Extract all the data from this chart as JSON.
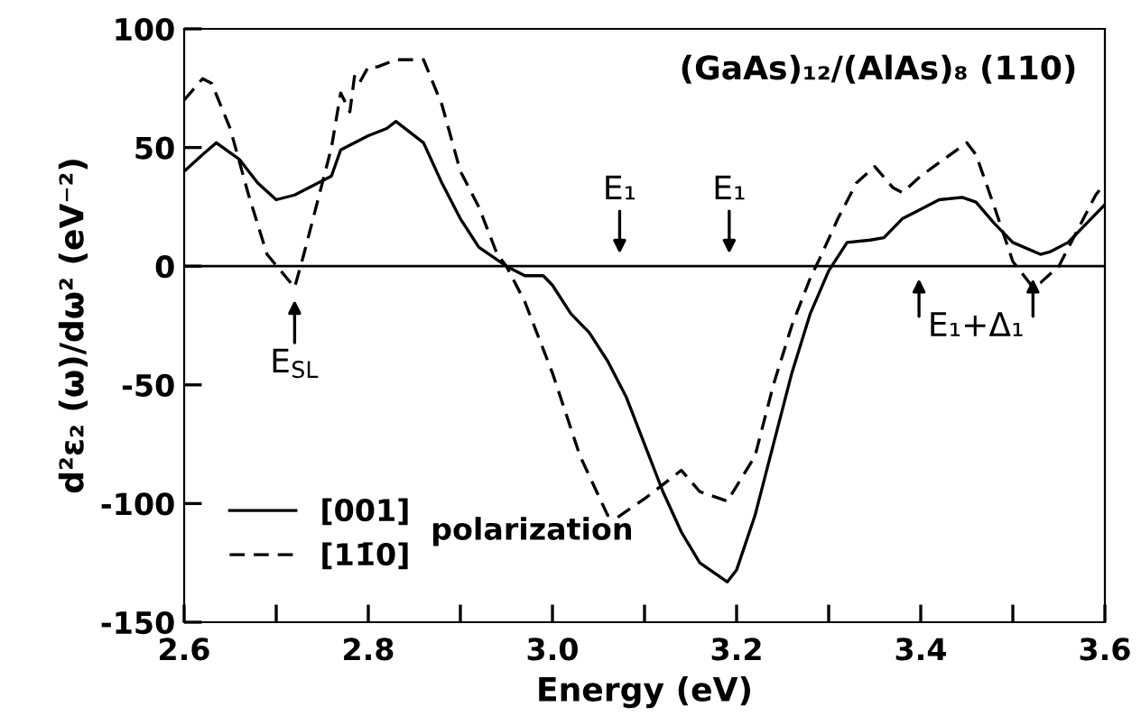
{
  "chart_data": {
    "type": "line",
    "title": "(GaAs)₁₂/(AlAs)₈ (110)",
    "xlabel": "Energy (eV)",
    "ylabel": "d²ε₂ (ω)/dω² (eV⁻²)",
    "legend_title": "polarization",
    "legend": "bottom left",
    "grid": false,
    "xlim": [
      2.6,
      3.6
    ],
    "ylim": [
      -150,
      100
    ],
    "xticks": [
      2.6,
      {
        "value": 2.7,
        "label": null
      },
      2.8,
      {
        "value": 2.9,
        "label": null
      },
      {
        "value": 3.0,
        "label": "3.0"
      },
      {
        "value": 3.1,
        "label": null
      },
      3.2,
      {
        "value": 3.3,
        "label": null
      },
      3.4,
      {
        "value": 3.5,
        "label": null
      },
      3.6
    ],
    "yticks": [
      -150,
      -100,
      -50,
      0,
      50,
      100
    ],
    "ref_lines": [
      {
        "axis": "y",
        "value": 0,
        "color": "#000000",
        "line_style": "solid"
      }
    ],
    "series": [
      {
        "name": "[001]",
        "color": "#000000",
        "line_style": "solid",
        "x": [
          2.6,
          2.62,
          2.635,
          2.66,
          2.68,
          2.7,
          2.72,
          2.74,
          2.76,
          2.77,
          2.8,
          2.82,
          2.83,
          2.86,
          2.88,
          2.9,
          2.92,
          2.95,
          2.97,
          2.99,
          3.0,
          3.02,
          3.04,
          3.06,
          3.08,
          3.1,
          3.12,
          3.14,
          3.16,
          3.19,
          3.2,
          3.22,
          3.24,
          3.26,
          3.28,
          3.3,
          3.32,
          3.345,
          3.36,
          3.38,
          3.42,
          3.445,
          3.46,
          3.48,
          3.5,
          3.53,
          3.54,
          3.56,
          3.58,
          3.6
        ],
        "values": [
          40,
          47,
          52,
          45,
          35,
          28,
          30,
          34,
          38,
          49,
          55,
          58,
          61,
          52,
          35,
          20,
          8,
          0,
          -4,
          -4,
          -8,
          -20,
          -28,
          -40,
          -55,
          -75,
          -95,
          -112,
          -125,
          -133,
          -128,
          -105,
          -75,
          -45,
          -20,
          -2,
          10,
          11,
          12,
          20,
          28,
          29,
          27,
          18,
          10,
          5,
          6,
          10,
          18,
          26
        ]
      },
      {
        "name": "[11̄0]",
        "color": "#000000",
        "line_style": "dashed",
        "x": [
          2.6,
          2.62,
          2.63,
          2.65,
          2.67,
          2.69,
          2.72,
          2.73,
          2.75,
          2.76,
          2.77,
          2.78,
          2.785,
          2.79,
          2.8,
          2.81,
          2.83,
          2.86,
          2.88,
          2.9,
          2.92,
          2.94,
          2.95,
          2.97,
          3.0,
          3.03,
          3.06,
          3.07,
          3.1,
          3.14,
          3.16,
          3.19,
          3.22,
          3.24,
          3.26,
          3.28,
          3.29,
          3.31,
          3.33,
          3.35,
          3.37,
          3.38,
          3.4,
          3.45,
          3.46,
          3.48,
          3.5,
          3.52,
          3.53,
          3.55,
          3.57,
          3.59,
          3.6
        ],
        "values": [
          70,
          79,
          77,
          58,
          30,
          5,
          -9,
          5,
          35,
          50,
          73,
          65,
          80,
          77,
          84,
          84,
          87,
          87,
          68,
          40,
          25,
          5,
          0,
          -15,
          -45,
          -80,
          -105,
          -106,
          -98,
          -86,
          -95,
          -99,
          -80,
          -50,
          -25,
          -5,
          3,
          20,
          35,
          42,
          33,
          31,
          38,
          52,
          47,
          25,
          2,
          -8,
          -7,
          0,
          15,
          30,
          35
        ]
      }
    ],
    "annotations": [
      {
        "text": "E₁",
        "x": 3.073,
        "y": 0
      },
      {
        "text": "E₁",
        "x": 3.192,
        "y": 0
      },
      {
        "text": "E$_{SL}$",
        "x": 2.72,
        "y": -9
      },
      {
        "text": "E₁+Δ₁",
        "x": 3.46,
        "y": 0
      }
    ]
  }
}
